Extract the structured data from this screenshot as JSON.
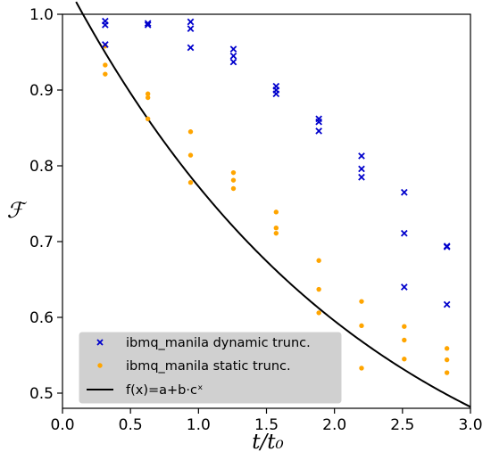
{
  "chart_data": {
    "type": "scatter",
    "xlabel": "t/t₀",
    "ylabel": "ℱ",
    "xlim": [
      0.0,
      3.0
    ],
    "ylim": [
      0.48,
      1.0
    ],
    "xticks": [
      "0.0",
      "0.5",
      "1.0",
      "1.5",
      "2.0",
      "2.5",
      "3.0"
    ],
    "yticks": [
      "0.5",
      "0.6",
      "0.7",
      "0.8",
      "0.9",
      "1.0"
    ],
    "grid": false,
    "legend_position": "lower-left",
    "series": [
      {
        "name": "ibmq_manila dynamic trunc.",
        "marker": "x",
        "color": "#0000cc",
        "points": [
          [
            0.314,
            0.991
          ],
          [
            0.314,
            0.986
          ],
          [
            0.314,
            0.96
          ],
          [
            0.628,
            0.988
          ],
          [
            0.628,
            0.986
          ],
          [
            0.942,
            0.99
          ],
          [
            0.942,
            0.981
          ],
          [
            0.942,
            0.956
          ],
          [
            1.257,
            0.954
          ],
          [
            1.257,
            0.945
          ],
          [
            1.257,
            0.937
          ],
          [
            1.571,
            0.905
          ],
          [
            1.571,
            0.9
          ],
          [
            1.571,
            0.895
          ],
          [
            1.885,
            0.862
          ],
          [
            1.885,
            0.858
          ],
          [
            1.885,
            0.846
          ],
          [
            2.199,
            0.813
          ],
          [
            2.199,
            0.796
          ],
          [
            2.199,
            0.785
          ],
          [
            2.513,
            0.765
          ],
          [
            2.513,
            0.711
          ],
          [
            2.513,
            0.64
          ],
          [
            2.827,
            0.694
          ],
          [
            2.827,
            0.693
          ],
          [
            2.827,
            0.617
          ]
        ]
      },
      {
        "name": "ibmq_manila static trunc.",
        "marker": "dot",
        "color": "#ffa500",
        "points": [
          [
            0.314,
            0.958
          ],
          [
            0.314,
            0.933
          ],
          [
            0.314,
            0.921
          ],
          [
            0.628,
            0.895
          ],
          [
            0.628,
            0.89
          ],
          [
            0.628,
            0.862
          ],
          [
            0.942,
            0.845
          ],
          [
            0.942,
            0.814
          ],
          [
            0.942,
            0.778
          ],
          [
            1.257,
            0.791
          ],
          [
            1.257,
            0.781
          ],
          [
            1.257,
            0.77
          ],
          [
            1.571,
            0.739
          ],
          [
            1.571,
            0.718
          ],
          [
            1.571,
            0.711
          ],
          [
            1.885,
            0.675
          ],
          [
            1.885,
            0.637
          ],
          [
            1.885,
            0.606
          ],
          [
            2.199,
            0.621
          ],
          [
            2.199,
            0.589
          ],
          [
            2.199,
            0.533
          ],
          [
            2.513,
            0.588
          ],
          [
            2.513,
            0.57
          ],
          [
            2.513,
            0.545
          ],
          [
            2.827,
            0.559
          ],
          [
            2.827,
            0.544
          ],
          [
            2.827,
            0.527
          ]
        ]
      },
      {
        "name": "f(x)=a+b·cˣ",
        "type": "line",
        "color": "#000000",
        "a": 0.28,
        "b": 0.77,
        "c": 0.64,
        "x_start": 0.1
      }
    ]
  }
}
